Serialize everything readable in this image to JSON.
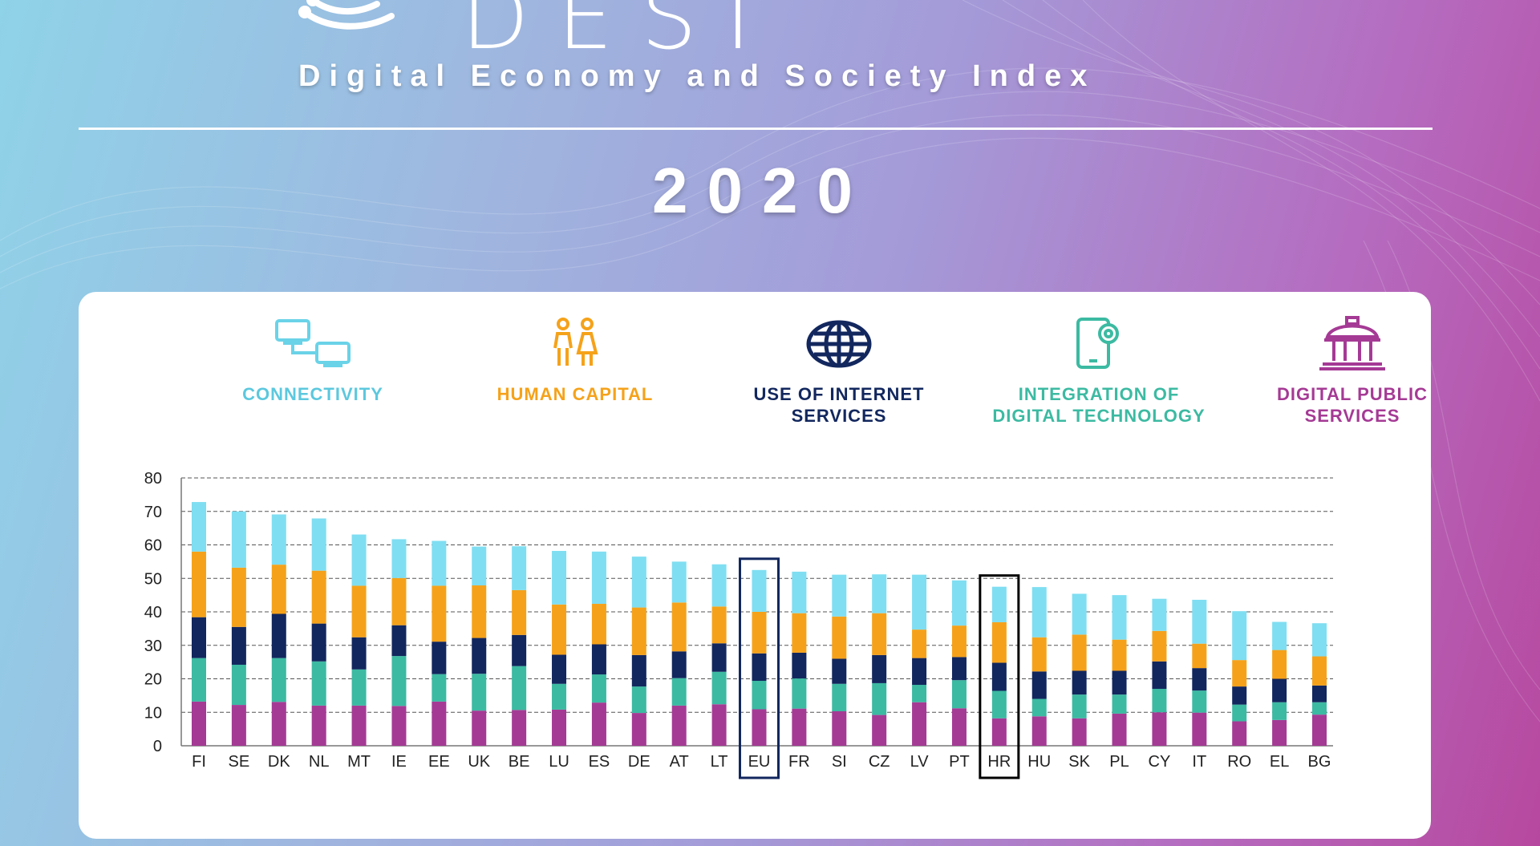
{
  "header": {
    "logo_letters": "D   E   S   I",
    "subtitle": "Digital Economy and Society Index",
    "year": "2020"
  },
  "legend": {
    "connectivity": {
      "label": "CONNECTIVITY",
      "icon": "connected-computers-icon",
      "color": "#7fdef2"
    },
    "human_capital": {
      "label": "HUMAN CAPITAL",
      "icon": "people-icon",
      "color": "#f5a21a"
    },
    "internet_services": {
      "label": "USE OF INTERNET\nSERVICES",
      "icon": "globe-icon",
      "color": "#12275e"
    },
    "digital_technology": {
      "label": "INTEGRATION OF\nDIGITAL TECHNOLOGY",
      "icon": "tablet-gear-icon",
      "color": "#3cbaa2"
    },
    "public_services": {
      "label": "DIGITAL PUBLIC\nSERVICES",
      "icon": "government-building-icon",
      "color": "#a53a95"
    }
  },
  "chart_data": {
    "type": "bar",
    "stacked": true,
    "categories": [
      "FI",
      "SE",
      "DK",
      "NL",
      "MT",
      "IE",
      "EE",
      "UK",
      "BE",
      "LU",
      "ES",
      "DE",
      "AT",
      "LT",
      "EU",
      "FR",
      "SI",
      "CZ",
      "LV",
      "PT",
      "HR",
      "HU",
      "SK",
      "PL",
      "CY",
      "IT",
      "RO",
      "EL",
      "BG"
    ],
    "highlighted": [
      "EU",
      "HR"
    ],
    "ylim": [
      0,
      80
    ],
    "yticks": [
      0,
      10,
      20,
      30,
      40,
      50,
      60,
      70,
      80
    ],
    "grid": true,
    "legend_position": "top",
    "series": [
      {
        "name": "DIGITAL PUBLIC SERVICES",
        "color": "#a53a95",
        "values": [
          13.2,
          12.2,
          13.1,
          12.0,
          12.0,
          11.9,
          13.2,
          10.5,
          10.7,
          10.8,
          12.9,
          9.8,
          12.0,
          12.4,
          10.9,
          11.1,
          10.3,
          9.2,
          13.0,
          11.2,
          8.2,
          8.8,
          8.2,
          9.6,
          10.0,
          9.9,
          7.3,
          7.7,
          9.3
        ]
      },
      {
        "name": "INTEGRATION OF DIGITAL TECHNOLOGY",
        "color": "#3cbaa2",
        "values": [
          13.0,
          12.0,
          13.1,
          13.2,
          10.8,
          14.9,
          8.2,
          11.0,
          13.1,
          7.7,
          8.4,
          7.9,
          8.2,
          9.7,
          8.5,
          9.0,
          8.2,
          9.5,
          5.2,
          8.4,
          8.2,
          5.2,
          7.1,
          5.7,
          7.0,
          6.6,
          5.0,
          5.3,
          3.7
        ]
      },
      {
        "name": "USE OF INTERNET SERVICES",
        "color": "#12275e",
        "values": [
          12.2,
          11.3,
          13.2,
          11.3,
          9.6,
          9.2,
          9.7,
          10.7,
          9.3,
          8.7,
          9.0,
          9.4,
          8.0,
          8.5,
          8.2,
          7.7,
          7.5,
          8.4,
          8.0,
          6.9,
          8.4,
          8.2,
          7.1,
          7.1,
          8.2,
          6.7,
          5.4,
          7.0,
          5.0
        ]
      },
      {
        "name": "HUMAN CAPITAL",
        "color": "#f5a21a",
        "values": [
          19.6,
          17.7,
          14.7,
          15.8,
          15.4,
          14.1,
          16.7,
          15.7,
          13.4,
          15.0,
          12.1,
          14.2,
          14.6,
          11.0,
          12.4,
          11.8,
          12.6,
          12.5,
          8.5,
          9.4,
          12.1,
          10.2,
          10.8,
          9.3,
          9.1,
          7.3,
          7.9,
          8.6,
          8.7
        ]
      },
      {
        "name": "CONNECTIVITY",
        "color": "#7fdef2",
        "values": [
          14.8,
          16.8,
          15.0,
          15.6,
          15.3,
          11.6,
          13.4,
          11.6,
          13.1,
          16.0,
          15.6,
          15.2,
          12.2,
          12.6,
          12.5,
          12.4,
          12.5,
          11.6,
          16.4,
          13.5,
          10.6,
          15.0,
          12.2,
          13.3,
          9.6,
          13.1,
          14.6,
          8.4,
          9.9
        ]
      }
    ]
  }
}
